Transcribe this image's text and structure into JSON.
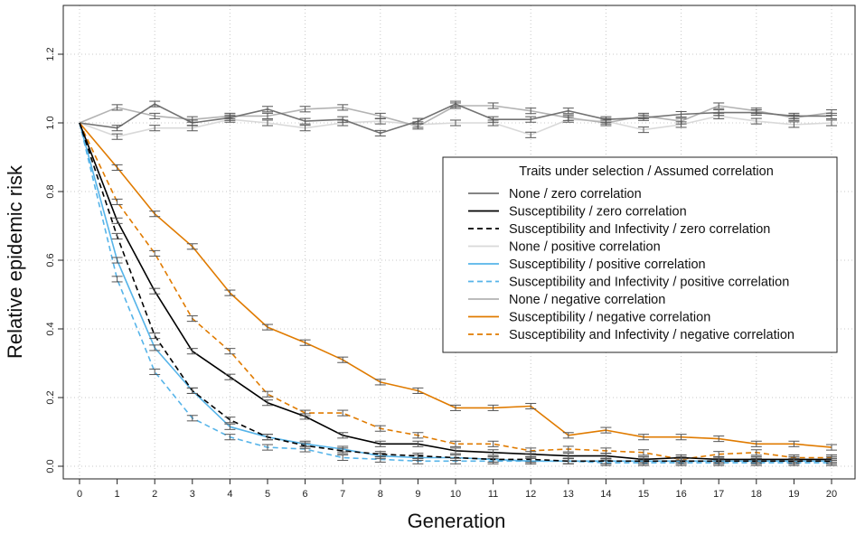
{
  "chart_data": {
    "type": "line",
    "title": "",
    "xlabel": "Generation",
    "ylabel": "Relative epidemic risk",
    "xlim": [
      0,
      20
    ],
    "ylim": [
      0,
      1.3
    ],
    "x": [
      0,
      1,
      2,
      3,
      4,
      5,
      6,
      7,
      8,
      9,
      10,
      11,
      12,
      13,
      14,
      15,
      16,
      17,
      18,
      19,
      20
    ],
    "x_ticks": [
      "0",
      "1",
      "2",
      "3",
      "4",
      "5",
      "6",
      "7",
      "8",
      "9",
      "10",
      "11",
      "12",
      "13",
      "14",
      "15",
      "16",
      "17",
      "18",
      "19",
      "20"
    ],
    "y_ticks": [
      "0.0",
      "0.2",
      "0.4",
      "0.6",
      "0.8",
      "1.0",
      "1.2"
    ],
    "y_tick_values": [
      0,
      0.2,
      0.4,
      0.6,
      0.8,
      1.0,
      1.2
    ],
    "grid": true,
    "error_bar_halfwidth": 0.008,
    "legend": {
      "title": "Traits under selection / Assumed correlation",
      "position": "right"
    },
    "series": [
      {
        "name": "None / zero correlation",
        "color": "#737373",
        "dash": "solid",
        "values": [
          1.0,
          0.985,
          1.055,
          1.0,
          1.015,
          1.04,
          1.005,
          1.01,
          0.97,
          1.005,
          1.055,
          1.01,
          1.01,
          1.035,
          1.01,
          1.015,
          1.025,
          1.03,
          1.03,
          1.02,
          1.02
        ]
      },
      {
        "name": "Susceptibility / zero correlation",
        "color": "#000000",
        "dash": "solid",
        "values": [
          1.0,
          0.715,
          0.51,
          0.335,
          0.26,
          0.185,
          0.145,
          0.09,
          0.065,
          0.065,
          0.045,
          0.04,
          0.035,
          0.03,
          0.03,
          0.02,
          0.025,
          0.02,
          0.02,
          0.02,
          0.02
        ]
      },
      {
        "name": "Susceptibility and Infectivity / zero correlation",
        "color": "#000000",
        "dash": "dashed",
        "values": [
          1.0,
          0.67,
          0.38,
          0.22,
          0.135,
          0.085,
          0.06,
          0.045,
          0.035,
          0.03,
          0.025,
          0.02,
          0.02,
          0.015,
          0.015,
          0.015,
          0.015,
          0.015,
          0.015,
          0.015,
          0.015
        ]
      },
      {
        "name": "None / positive correlation",
        "color": "#d9d9d9",
        "dash": "solid",
        "values": [
          1.0,
          0.96,
          0.985,
          0.985,
          1.01,
          1.0,
          0.985,
          1.0,
          1.005,
          0.995,
          1.0,
          1.0,
          0.965,
          1.01,
          1.005,
          0.98,
          0.995,
          1.02,
          1.005,
          0.995,
          1.0
        ]
      },
      {
        "name": "Susceptibility / positive correlation",
        "color": "#56b4e9",
        "dash": "solid",
        "values": [
          1.0,
          0.6,
          0.345,
          0.22,
          0.115,
          0.085,
          0.065,
          0.05,
          0.03,
          0.025,
          0.025,
          0.02,
          0.015,
          0.015,
          0.015,
          0.015,
          0.015,
          0.015,
          0.015,
          0.015,
          0.015
        ]
      },
      {
        "name": "Susceptibility and Infectivity / positive correlation",
        "color": "#56b4e9",
        "dash": "dashed",
        "values": [
          1.0,
          0.545,
          0.275,
          0.14,
          0.085,
          0.055,
          0.05,
          0.025,
          0.02,
          0.015,
          0.015,
          0.015,
          0.015,
          0.015,
          0.01,
          0.01,
          0.01,
          0.01,
          0.01,
          0.01,
          0.01
        ]
      },
      {
        "name": "None / negative correlation",
        "color": "#b3b3b3",
        "dash": "solid",
        "values": [
          1.0,
          1.045,
          1.02,
          1.01,
          1.02,
          1.02,
          1.04,
          1.045,
          1.02,
          0.99,
          1.05,
          1.05,
          1.035,
          1.015,
          1.0,
          1.02,
          1.005,
          1.05,
          1.035,
          1.015,
          1.03
        ]
      },
      {
        "name": "Susceptibility / negative correlation",
        "color": "#e07b00",
        "dash": "solid",
        "values": [
          1.0,
          0.87,
          0.735,
          0.64,
          0.505,
          0.405,
          0.36,
          0.31,
          0.245,
          0.22,
          0.17,
          0.17,
          0.175,
          0.09,
          0.105,
          0.085,
          0.085,
          0.08,
          0.065,
          0.065,
          0.055
        ]
      },
      {
        "name": "Susceptibility and Infectivity / negative correlation",
        "color": "#e07b00",
        "dash": "dashed",
        "values": [
          1.0,
          0.77,
          0.62,
          0.43,
          0.335,
          0.21,
          0.155,
          0.155,
          0.11,
          0.09,
          0.065,
          0.065,
          0.045,
          0.05,
          0.045,
          0.04,
          0.02,
          0.035,
          0.04,
          0.025,
          0.025
        ]
      }
    ]
  }
}
